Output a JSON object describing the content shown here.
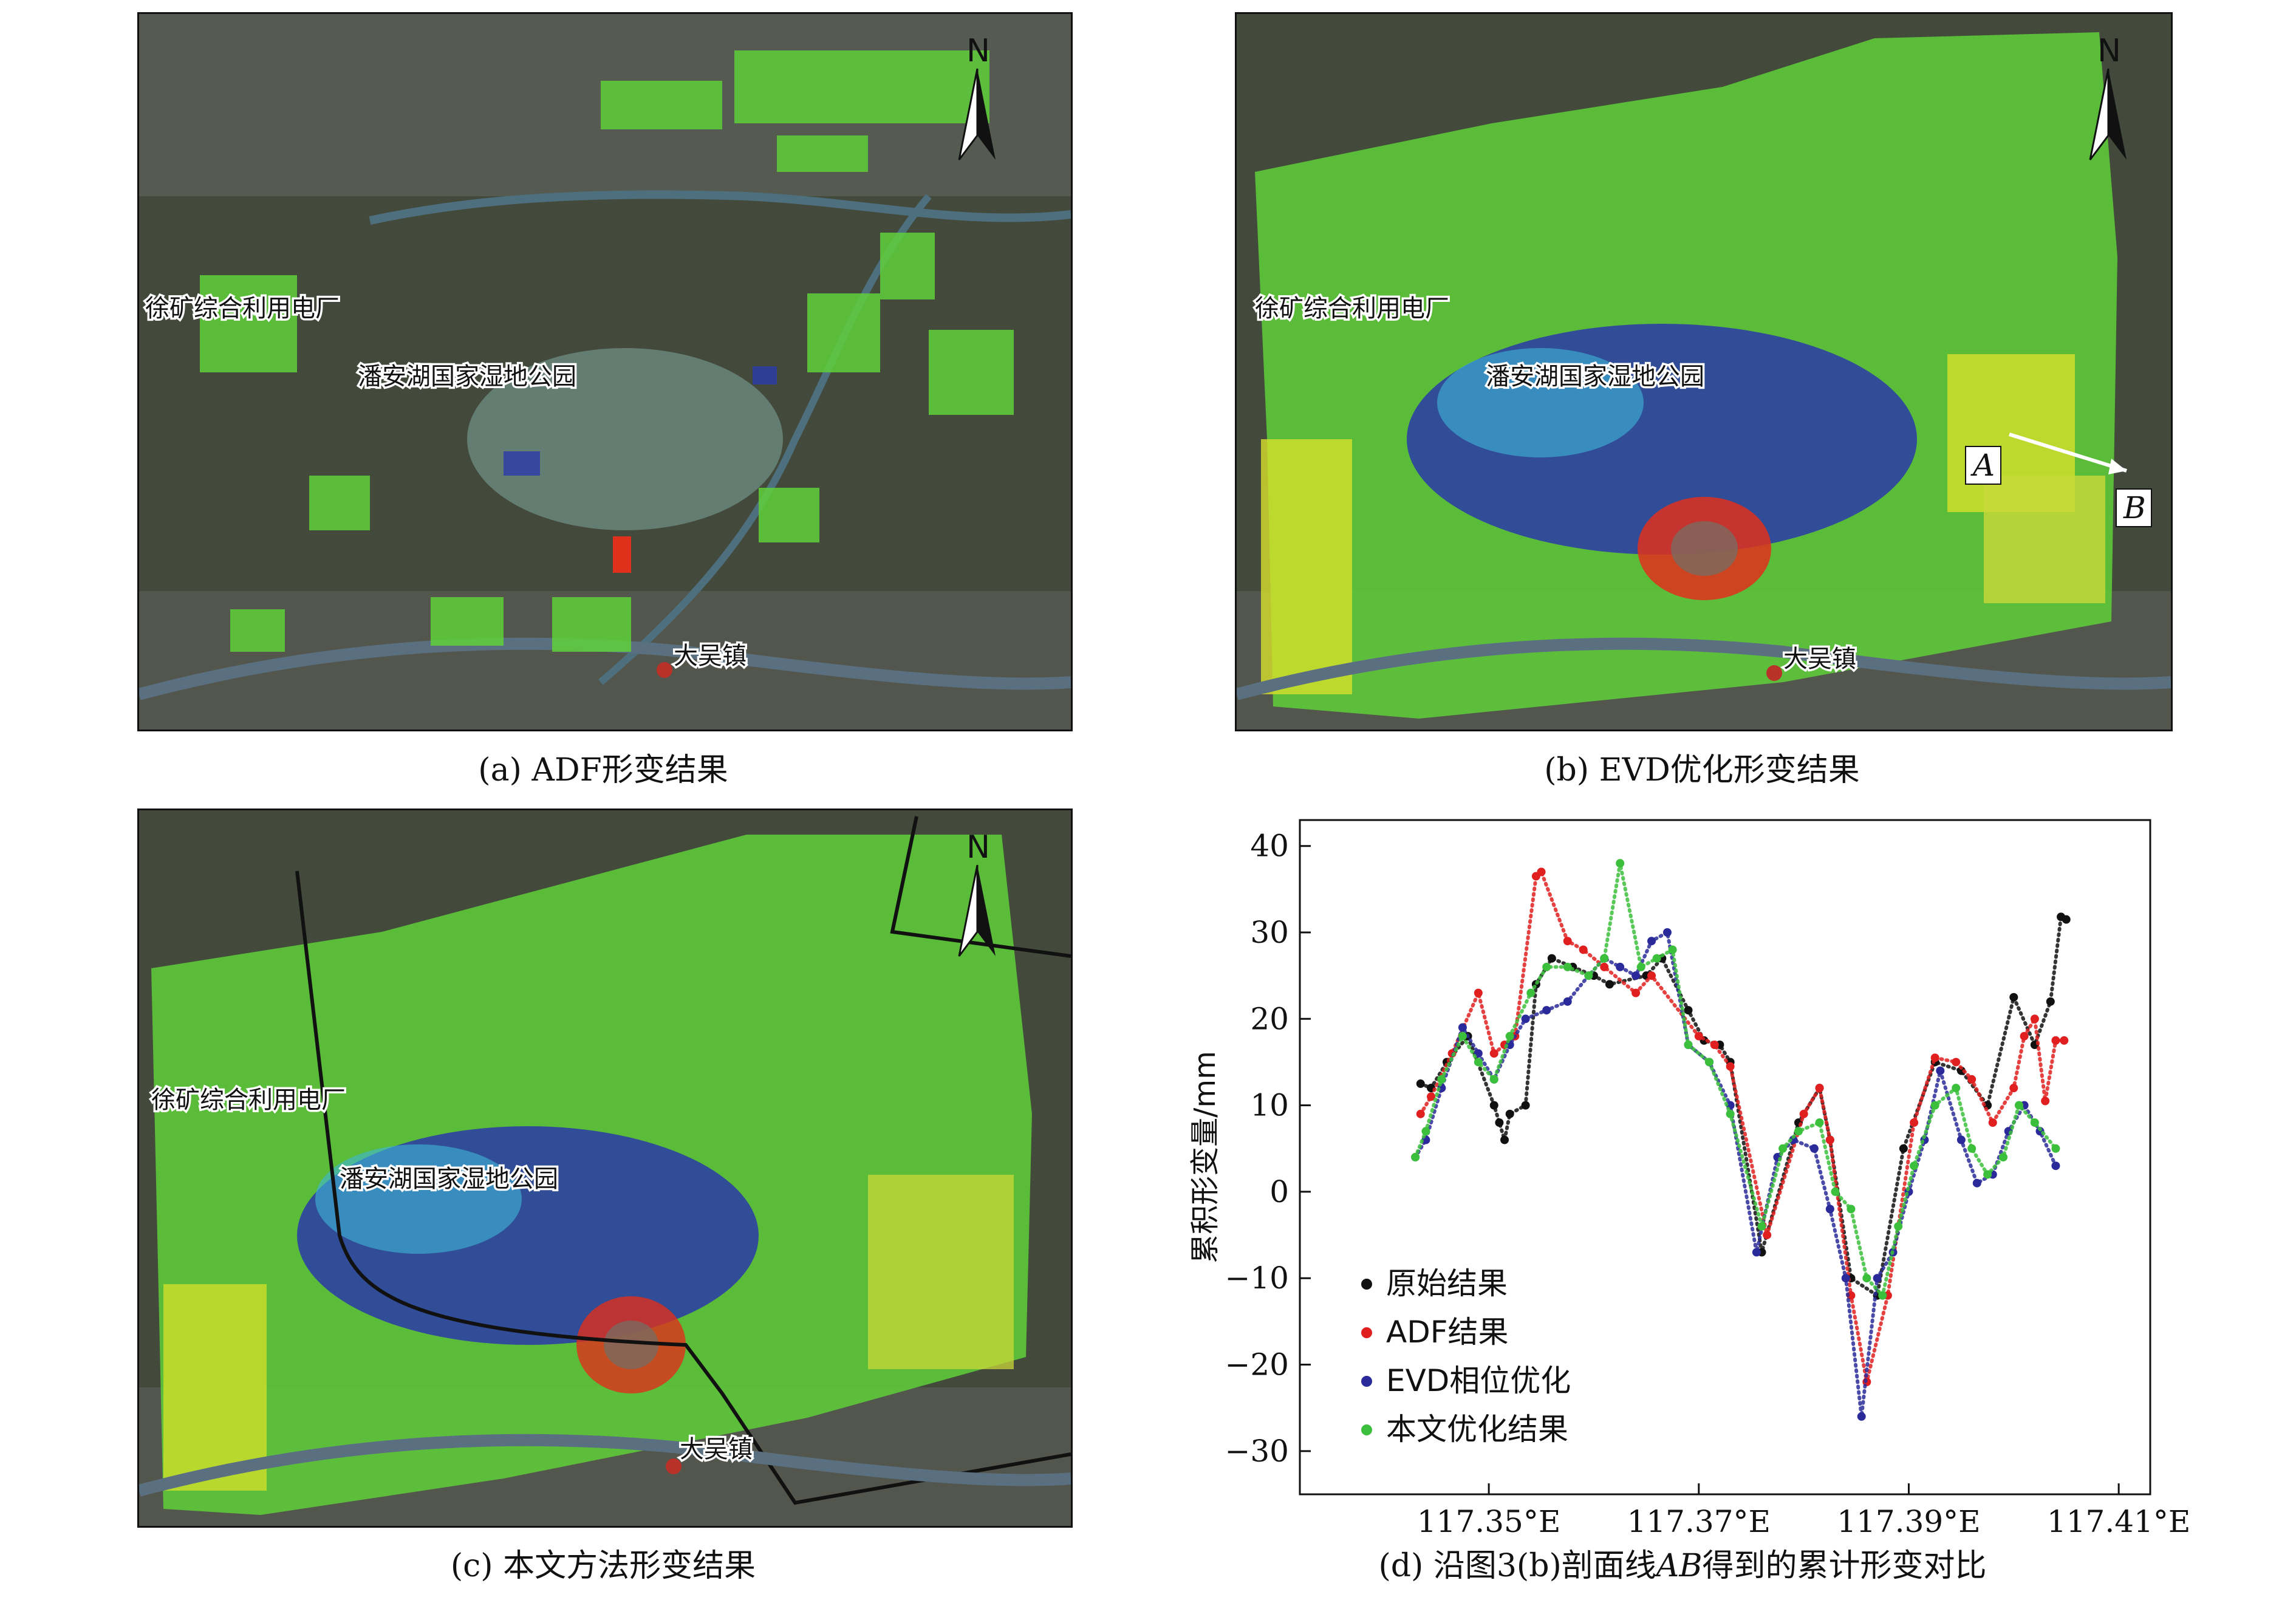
{
  "panels": {
    "a": {
      "caption": "(a) ADF形变结果",
      "labels": {
        "power_plant": "徐矿综合利用电厂",
        "park": "潘安湖国家湿地公园",
        "town": "大吴镇",
        "north": "N"
      }
    },
    "b": {
      "caption": "(b) EVD优化形变结果",
      "labels": {
        "power_plant": "徐矿综合利用电厂",
        "park": "潘安湖国家湿地公园",
        "town": "大吴镇",
        "north": "N",
        "point_a": "A",
        "point_b": "B"
      }
    },
    "c": {
      "caption": "(c) 本文方法形变结果",
      "labels": {
        "power_plant": "徐矿综合利用电厂",
        "park": "潘安湖国家湿地公园",
        "town": "大吴镇",
        "north": "N"
      }
    },
    "d": {
      "caption_prefix": "(d) 沿图3(b)剖面线",
      "caption_italic": "AB",
      "caption_suffix": "得到的累计形变对比"
    }
  },
  "colors": {
    "deform_green": "#5fd03a",
    "deform_yellow": "#d7e02a",
    "deform_blue": "#2a3aa8",
    "deform_cyan": "#3fb8d8",
    "deform_red": "#e0301c",
    "series_original": "#111111",
    "series_adf": "#e02020",
    "series_evd": "#2a2a9a",
    "series_ours": "#3cbf3c"
  },
  "chart_data": {
    "type": "scatter",
    "title": "",
    "xlabel": "",
    "ylabel": "累积形变量/mm",
    "xlim": [
      117.332,
      117.413
    ],
    "ylim": [
      -35,
      43
    ],
    "x_ticks": [
      117.35,
      117.37,
      117.39,
      117.41
    ],
    "x_tick_labels": [
      "117.35°E",
      "117.37°E",
      "117.39°E",
      "117.41°E"
    ],
    "y_ticks": [
      -30,
      -20,
      -10,
      0,
      10,
      20,
      30,
      40
    ],
    "y_tick_labels": [
      "−30",
      "−20",
      "−10",
      "0",
      "10",
      "20",
      "30",
      "40"
    ],
    "legend_position": "bottom-left",
    "series": [
      {
        "name": "原始结果",
        "points": [
          [
            117.3435,
            12.5
          ],
          [
            117.3445,
            12
          ],
          [
            117.346,
            15
          ],
          [
            117.348,
            18
          ],
          [
            117.3505,
            10
          ],
          [
            117.351,
            8
          ],
          [
            117.3515,
            6
          ],
          [
            117.352,
            9
          ],
          [
            117.3535,
            10
          ],
          [
            117.3545,
            24
          ],
          [
            117.356,
            27
          ],
          [
            117.358,
            26
          ],
          [
            117.36,
            25
          ],
          [
            117.3615,
            24
          ],
          [
            117.365,
            25
          ],
          [
            117.3665,
            27
          ],
          [
            117.369,
            21
          ],
          [
            117.3705,
            17.5
          ],
          [
            117.372,
            17
          ],
          [
            117.373,
            15
          ],
          [
            117.376,
            -7
          ],
          [
            117.3795,
            8
          ],
          [
            117.3815,
            12
          ],
          [
            117.3825,
            6
          ],
          [
            117.3845,
            -10
          ],
          [
            117.387,
            -12
          ],
          [
            117.3895,
            5
          ],
          [
            117.3925,
            15
          ],
          [
            117.395,
            14
          ],
          [
            117.3975,
            10
          ],
          [
            117.4,
            22.5
          ],
          [
            117.402,
            17
          ],
          [
            117.4035,
            22
          ],
          [
            117.4045,
            31.8
          ],
          [
            117.405,
            31.5
          ]
        ]
      },
      {
        "name": "ADF结果",
        "points": [
          [
            117.3435,
            9
          ],
          [
            117.3445,
            11
          ],
          [
            117.3465,
            16
          ],
          [
            117.349,
            23
          ],
          [
            117.3505,
            16
          ],
          [
            117.3515,
            17
          ],
          [
            117.3525,
            18
          ],
          [
            117.3545,
            36.5
          ],
          [
            117.355,
            37
          ],
          [
            117.3575,
            29
          ],
          [
            117.359,
            28
          ],
          [
            117.361,
            26
          ],
          [
            117.364,
            23
          ],
          [
            117.3655,
            25
          ],
          [
            117.37,
            18
          ],
          [
            117.3715,
            17
          ],
          [
            117.373,
            14.5
          ],
          [
            117.3765,
            -5
          ],
          [
            117.38,
            9
          ],
          [
            117.3815,
            12
          ],
          [
            117.3825,
            6
          ],
          [
            117.3845,
            -12
          ],
          [
            117.386,
            -22
          ],
          [
            117.388,
            -12
          ],
          [
            117.3905,
            8
          ],
          [
            117.3925,
            15.5
          ],
          [
            117.3945,
            15
          ],
          [
            117.396,
            13
          ],
          [
            117.398,
            8
          ],
          [
            117.4,
            12
          ],
          [
            117.401,
            18
          ],
          [
            117.402,
            20
          ],
          [
            117.403,
            10.5
          ],
          [
            117.404,
            17.5
          ],
          [
            117.4048,
            17.5
          ]
        ]
      },
      {
        "name": "EVD相位优化",
        "points": [
          [
            117.343,
            4
          ],
          [
            117.344,
            6
          ],
          [
            117.3455,
            12
          ],
          [
            117.3475,
            19
          ],
          [
            117.349,
            16
          ],
          [
            117.3505,
            13
          ],
          [
            117.352,
            17
          ],
          [
            117.3535,
            20
          ],
          [
            117.3555,
            21
          ],
          [
            117.3575,
            22
          ],
          [
            117.3595,
            25
          ],
          [
            117.361,
            27
          ],
          [
            117.3625,
            26
          ],
          [
            117.364,
            25
          ],
          [
            117.3655,
            29
          ],
          [
            117.367,
            30
          ],
          [
            117.369,
            17
          ],
          [
            117.371,
            15
          ],
          [
            117.373,
            10
          ],
          [
            117.3755,
            -7
          ],
          [
            117.3775,
            4
          ],
          [
            117.379,
            6
          ],
          [
            117.381,
            5
          ],
          [
            117.3825,
            -2
          ],
          [
            117.384,
            -10
          ],
          [
            117.3855,
            -26
          ],
          [
            117.387,
            -10
          ],
          [
            117.3885,
            -7
          ],
          [
            117.39,
            0
          ],
          [
            117.3915,
            6
          ],
          [
            117.393,
            14
          ],
          [
            117.395,
            6
          ],
          [
            117.3965,
            1
          ],
          [
            117.398,
            2
          ],
          [
            117.3995,
            7
          ],
          [
            117.401,
            10
          ],
          [
            117.4025,
            7
          ],
          [
            117.404,
            3
          ]
        ]
      },
      {
        "name": "本文优化结果",
        "points": [
          [
            117.343,
            4
          ],
          [
            117.344,
            7
          ],
          [
            117.3455,
            13
          ],
          [
            117.3475,
            18
          ],
          [
            117.349,
            15
          ],
          [
            117.3505,
            13
          ],
          [
            117.352,
            18
          ],
          [
            117.354,
            23
          ],
          [
            117.3555,
            26
          ],
          [
            117.3575,
            26
          ],
          [
            117.3595,
            25
          ],
          [
            117.361,
            27
          ],
          [
            117.3625,
            38
          ],
          [
            117.3645,
            26
          ],
          [
            117.366,
            27
          ],
          [
            117.3675,
            28
          ],
          [
            117.369,
            17
          ],
          [
            117.371,
            15
          ],
          [
            117.373,
            9
          ],
          [
            117.376,
            -4
          ],
          [
            117.378,
            5
          ],
          [
            117.3795,
            7
          ],
          [
            117.3815,
            8
          ],
          [
            117.383,
            0
          ],
          [
            117.3845,
            -2
          ],
          [
            117.386,
            -10
          ],
          [
            117.3875,
            -12
          ],
          [
            117.389,
            -4
          ],
          [
            117.3905,
            3
          ],
          [
            117.3925,
            10
          ],
          [
            117.3945,
            12
          ],
          [
            117.396,
            5
          ],
          [
            117.3975,
            2
          ],
          [
            117.399,
            4
          ],
          [
            117.4005,
            10
          ],
          [
            117.402,
            8
          ],
          [
            117.404,
            5
          ]
        ]
      }
    ]
  }
}
